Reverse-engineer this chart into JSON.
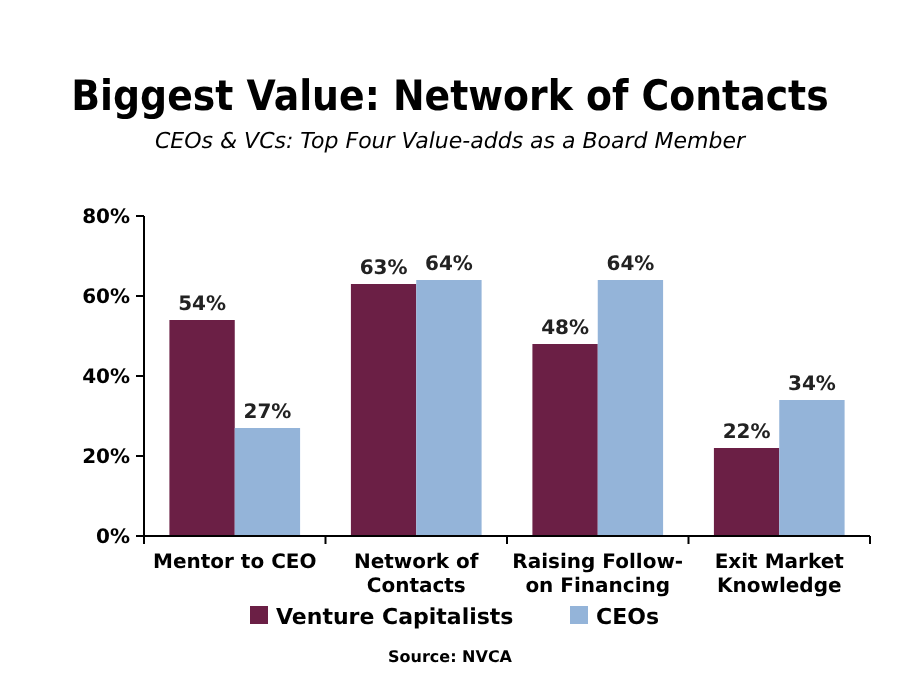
{
  "chart_data": {
    "type": "bar",
    "title": "Biggest Value: Network of Contacts",
    "subtitle": "CEOs & VCs: Top Four Value-adds as a Board Member",
    "categories": [
      "Mentor to CEO",
      "Network of\nContacts",
      "Raising Follow-\non Financing",
      "Exit Market\nKnowledge"
    ],
    "series": [
      {
        "name": "Venture Capitalists",
        "color": "#6b1f45",
        "values": [
          54,
          63,
          48,
          22
        ],
        "value_labels": [
          "54%",
          "63%",
          "48%",
          "22%"
        ]
      },
      {
        "name": "CEOs",
        "color": "#94b4d9",
        "values": [
          27,
          64,
          64,
          34
        ],
        "value_labels": [
          "27%",
          "64%",
          "64%",
          "34%"
        ]
      }
    ],
    "ylim": [
      0,
      80
    ],
    "yticks": [
      {
        "value": 0,
        "label": "0%"
      },
      {
        "value": 20,
        "label": "20%"
      },
      {
        "value": 40,
        "label": "40%"
      },
      {
        "value": 60,
        "label": "60%"
      },
      {
        "value": 80,
        "label": "80%"
      }
    ],
    "grid": false,
    "legend": "bottom",
    "annotations": [
      "Source: NVCA"
    ]
  }
}
